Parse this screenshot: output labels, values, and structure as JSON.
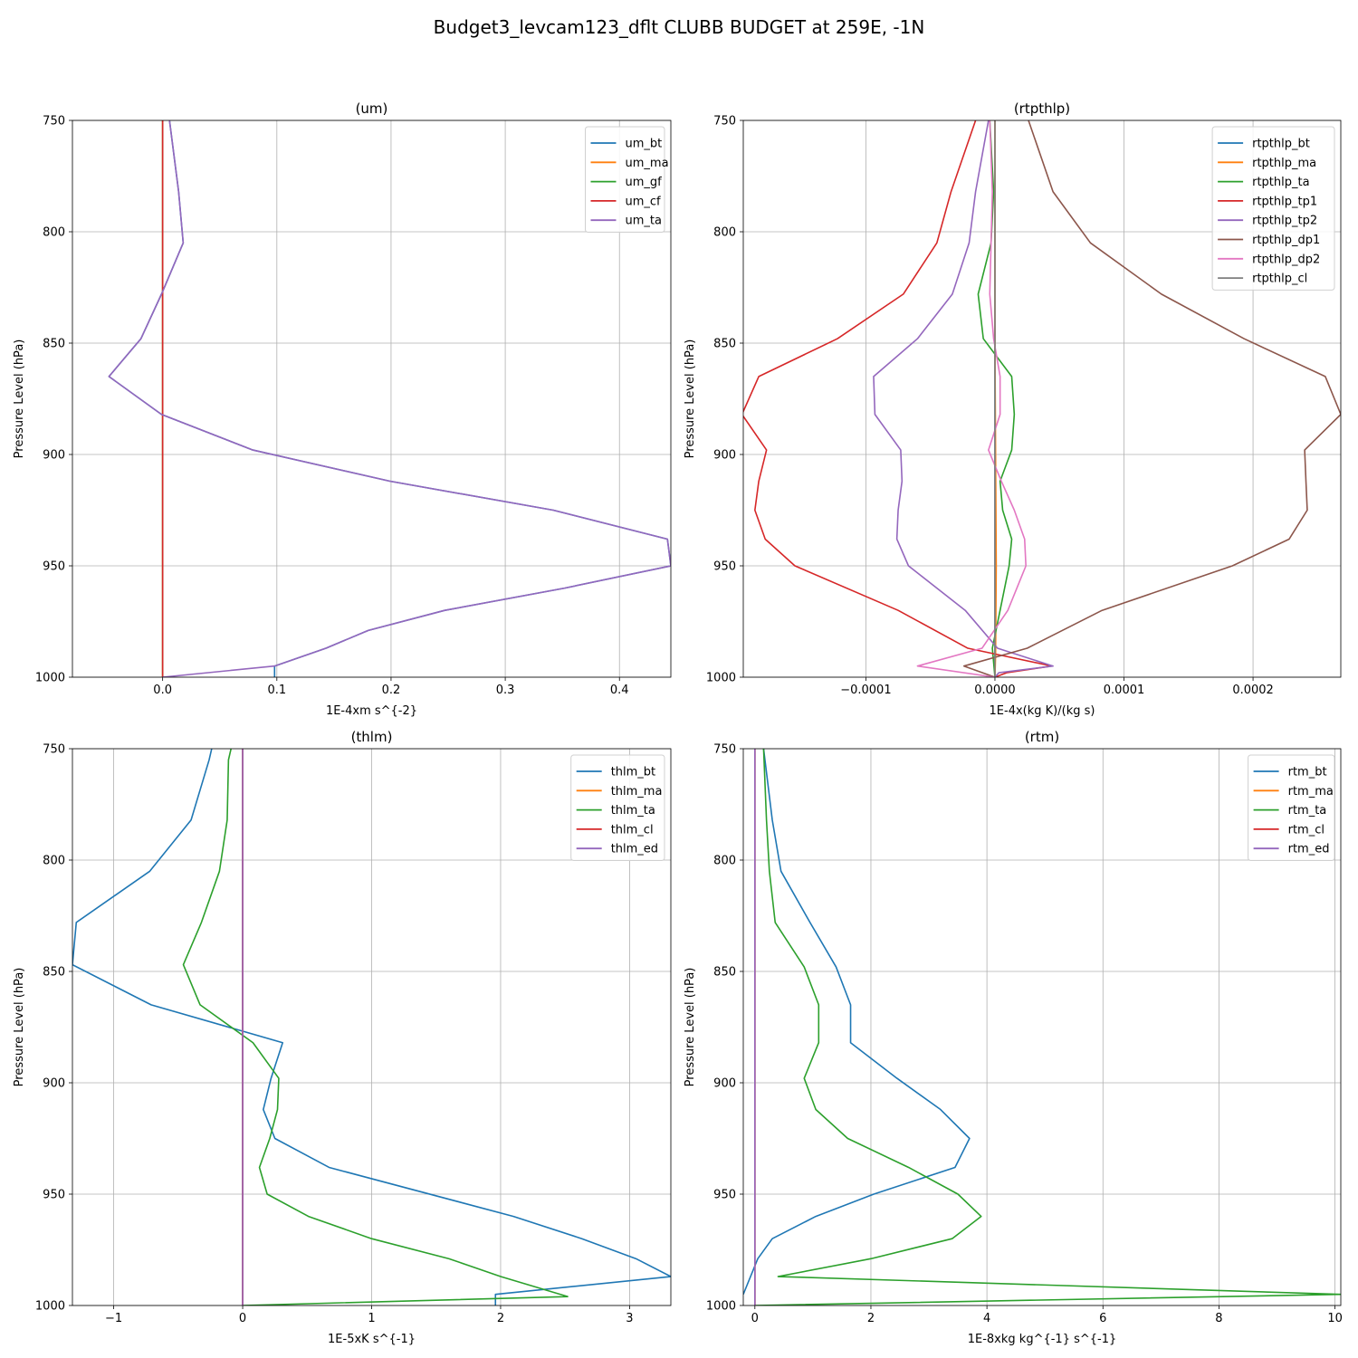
{
  "figure": {
    "title": "Budget3_levcam123_dflt CLUBB BUDGET at 259E, -1N"
  },
  "chart_data": [
    {
      "type": "line",
      "title": "(um)",
      "xlabel": "1E-4xm s^{-2}",
      "ylabel": "Pressure Level (hPa)",
      "xlim": [
        -0.079,
        0.445
      ],
      "ylim": [
        1000,
        750
      ],
      "y_inverted": true,
      "grid": true,
      "legend": "top-right",
      "xticks": [
        0.0,
        0.1,
        0.2,
        0.3,
        0.4
      ],
      "xtick_labels": [
        "0.0",
        "0.1",
        "0.2",
        "0.3",
        "0.4"
      ],
      "yticks": [
        750,
        800,
        850,
        900,
        950,
        1000
      ],
      "ytick_labels": [
        "750",
        "800",
        "850",
        "900",
        "950",
        "1000"
      ],
      "series": [
        {
          "name": "um_bt",
          "color": "#1f77b4",
          "x": [
            0.006,
            0.014,
            0.018,
            -0.001,
            -0.019,
            -0.047,
            -0.001,
            0.079,
            0.199,
            0.342,
            0.442,
            0.445,
            0.352,
            0.247,
            0.18,
            0.143,
            0.098,
            0.098
          ],
          "y": [
            750,
            782,
            805,
            828,
            848,
            865,
            882,
            898,
            912,
            925,
            938,
            950,
            960,
            970,
            979,
            987,
            995,
            1000
          ]
        },
        {
          "name": "um_ma",
          "color": "#ff7f0e",
          "x": [
            0,
            0
          ],
          "y": [
            750,
            1000
          ]
        },
        {
          "name": "um_gf",
          "color": "#2ca02c",
          "x": [
            0,
            0
          ],
          "y": [
            750,
            1000
          ]
        },
        {
          "name": "um_cf",
          "color": "#d62728",
          "x": [
            0,
            0
          ],
          "y": [
            750,
            1000
          ]
        },
        {
          "name": "um_ta",
          "color": "#9467bd",
          "x": [
            0.006,
            0.014,
            0.018,
            -0.001,
            -0.019,
            -0.047,
            -0.001,
            0.079,
            0.199,
            0.342,
            0.442,
            0.445,
            0.352,
            0.247,
            0.18,
            0.143,
            0.098,
            0.0
          ],
          "y": [
            750,
            782,
            805,
            828,
            848,
            865,
            882,
            898,
            912,
            925,
            938,
            950,
            960,
            970,
            979,
            987,
            995,
            1000
          ]
        }
      ]
    },
    {
      "type": "line",
      "title": "(rtpthlp)",
      "xlabel": "1E-4x(kg K)/(kg s)",
      "ylabel": "Pressure Level (hPa)",
      "xlim": [
        -0.000195,
        0.000268
      ],
      "ylim": [
        1000,
        750
      ],
      "y_inverted": true,
      "grid": true,
      "legend": "top-right",
      "xticks": [
        -0.0001,
        0.0,
        0.0001,
        0.0002
      ],
      "xtick_labels": [
        "−0.0001",
        "0.0000",
        "0.0001",
        "0.0002"
      ],
      "yticks": [
        750,
        800,
        850,
        900,
        950,
        1000
      ],
      "ytick_labels": [
        "750",
        "800",
        "850",
        "900",
        "950",
        "1000"
      ],
      "series": [
        {
          "name": "rtpthlp_bt",
          "color": "#1f77b4",
          "x": [
            0,
            0
          ],
          "y": [
            750,
            1000
          ]
        },
        {
          "name": "rtpthlp_ma",
          "color": "#ff7f0e",
          "x": [
            0.0,
            0.0,
            5e-07,
            1e-06,
            5e-07,
            0.0
          ],
          "y": [
            750,
            850,
            900,
            950,
            990,
            1000
          ]
        },
        {
          "name": "rtpthlp_ta",
          "color": "#2ca02c",
          "x": [
            -4e-06,
            -1e-06,
            -3e-06,
            -1.3e-05,
            -9e-06,
            1.3e-05,
            1.5e-05,
            1.3e-05,
            4e-06,
            6e-06,
            1.3e-05,
            1.1e-05,
            4e-06,
            -2e-06,
            0.0
          ],
          "y": [
            750,
            782,
            805,
            828,
            848,
            865,
            882,
            898,
            912,
            925,
            938,
            950,
            970,
            987,
            1000
          ]
        },
        {
          "name": "rtpthlp_tp1",
          "color": "#d62728",
          "x": [
            -1.5e-05,
            -3.4e-05,
            -4.5e-05,
            -7.1e-05,
            -0.000122,
            -0.000183,
            -0.000196,
            -0.000177,
            -0.000183,
            -0.000186,
            -0.000178,
            -0.000155,
            -7.5e-05,
            -2.1e-05,
            4.4e-05,
            9e-06,
            0.0
          ],
          "y": [
            750,
            782,
            805,
            828,
            848,
            865,
            882,
            898,
            912,
            925,
            938,
            950,
            970,
            987,
            995,
            998,
            1000
          ]
        },
        {
          "name": "rtpthlp_tp2",
          "color": "#9467bd",
          "x": [
            -5e-06,
            -1.5e-05,
            -2e-05,
            -3.3e-05,
            -6e-05,
            -9.4e-05,
            -9.3e-05,
            -7.3e-05,
            -7.2e-05,
            -7.5e-05,
            -7.6e-05,
            -6.7e-05,
            -2.3e-05,
            2e-06,
            4.5e-05,
            3e-06,
            0.0
          ],
          "y": [
            750,
            782,
            805,
            828,
            848,
            865,
            882,
            898,
            912,
            925,
            938,
            950,
            970,
            987,
            995,
            998,
            1000
          ]
        },
        {
          "name": "rtpthlp_dp1",
          "color": "#8c564b",
          "x": [
            2.6e-05,
            4.5e-05,
            7.4e-05,
            0.000129,
            0.000193,
            0.000256,
            0.000268,
            0.00024,
            0.000241,
            0.000242,
            0.000228,
            0.000184,
            8.3e-05,
            2.5e-05,
            -2.4e-05,
            0.0
          ],
          "y": [
            750,
            782,
            805,
            828,
            848,
            865,
            882,
            898,
            912,
            925,
            938,
            950,
            970,
            987,
            995,
            1000
          ]
        },
        {
          "name": "rtpthlp_dp2",
          "color": "#e377c2",
          "x": [
            -4e-06,
            -2e-06,
            -3e-06,
            -4e-06,
            -1e-06,
            4e-06,
            4e-06,
            -5e-06,
            5e-06,
            1.5e-05,
            2.3e-05,
            2.4e-05,
            1e-05,
            -1e-05,
            -6e-05,
            0.0
          ],
          "y": [
            750,
            782,
            805,
            828,
            848,
            865,
            882,
            898,
            912,
            925,
            938,
            950,
            970,
            987,
            995,
            1000
          ]
        },
        {
          "name": "rtpthlp_cl",
          "color": "#7f7f7f",
          "x": [
            0,
            0
          ],
          "y": [
            750,
            1000
          ]
        }
      ]
    },
    {
      "type": "line",
      "title": "(thlm)",
      "xlabel": "1E-5xK s^{-1}",
      "ylabel": "Pressure Level (hPa)",
      "xlim": [
        -1.32,
        3.32
      ],
      "ylim": [
        1000,
        750
      ],
      "y_inverted": true,
      "grid": true,
      "legend": "top-right",
      "xticks": [
        -1,
        0,
        1,
        2,
        3
      ],
      "xtick_labels": [
        "−1",
        "0",
        "1",
        "2",
        "3"
      ],
      "yticks": [
        750,
        800,
        850,
        900,
        950,
        1000
      ],
      "ytick_labels": [
        "750",
        "800",
        "850",
        "900",
        "950",
        "1000"
      ],
      "series": [
        {
          "name": "thlm_bt",
          "color": "#1f77b4",
          "x": [
            -0.24,
            -0.26,
            -0.4,
            -0.72,
            -1.29,
            -1.32,
            -0.71,
            0.31,
            0.22,
            0.16,
            0.25,
            0.67,
            2.1,
            2.63,
            3.05,
            3.32,
            1.96,
            1.96
          ],
          "y": [
            750,
            755,
            782,
            805,
            828,
            847,
            865,
            882,
            898,
            912,
            925,
            938,
            960,
            970,
            979,
            987,
            995,
            1000
          ]
        },
        {
          "name": "thlm_ma",
          "color": "#ff7f0e",
          "x": [
            0,
            0
          ],
          "y": [
            750,
            1000
          ]
        },
        {
          "name": "thlm_ta",
          "color": "#2ca02c",
          "x": [
            -0.09,
            -0.11,
            -0.12,
            -0.18,
            -0.32,
            -0.46,
            -0.33,
            0.08,
            0.28,
            0.27,
            0.21,
            0.13,
            0.19,
            0.51,
            1.0,
            1.6,
            2.0,
            2.52,
            0.0
          ],
          "y": [
            750,
            755,
            782,
            805,
            828,
            847,
            865,
            882,
            898,
            912,
            925,
            938,
            950,
            960,
            970,
            979,
            987,
            996,
            1000
          ]
        },
        {
          "name": "thlm_cl",
          "color": "#d62728",
          "x": [
            0,
            0
          ],
          "y": [
            750,
            1000
          ]
        },
        {
          "name": "thlm_ed",
          "color": "#9467bd",
          "x": [
            0,
            0
          ],
          "y": [
            750,
            1000
          ]
        }
      ]
    },
    {
      "type": "line",
      "title": "(rtm)",
      "xlabel": "1E-8xkg kg^{-1} s^{-1}",
      "ylabel": "Pressure Level (hPa)",
      "xlim": [
        -0.2,
        10.1
      ],
      "ylim": [
        1000,
        750
      ],
      "y_inverted": true,
      "grid": true,
      "legend": "top-right",
      "xticks": [
        0,
        2,
        4,
        6,
        8,
        10
      ],
      "xtick_labels": [
        "0",
        "2",
        "4",
        "6",
        "8",
        "10"
      ],
      "yticks": [
        750,
        800,
        850,
        900,
        950,
        1000
      ],
      "ytick_labels": [
        "750",
        "800",
        "850",
        "900",
        "950",
        "1000"
      ],
      "series": [
        {
          "name": "rtm_bt",
          "color": "#1f77b4",
          "x": [
            0.15,
            0.3,
            0.45,
            0.95,
            1.4,
            1.65,
            1.65,
            2.45,
            3.2,
            3.7,
            3.45,
            2.05,
            1.05,
            0.3,
            0.05,
            -0.2
          ],
          "y": [
            750,
            782,
            805,
            828,
            848,
            865,
            882,
            898,
            912,
            925,
            938,
            950,
            960,
            970,
            979,
            995
          ]
        },
        {
          "name": "rtm_ma",
          "color": "#ff7f0e",
          "x": [
            0,
            0
          ],
          "y": [
            750,
            1000
          ]
        },
        {
          "name": "rtm_ta",
          "color": "#2ca02c",
          "x": [
            0.15,
            0.2,
            0.25,
            0.35,
            0.85,
            1.1,
            1.1,
            0.85,
            1.05,
            1.6,
            2.65,
            3.5,
            3.9,
            3.4,
            2.0,
            0.4,
            10.1,
            0.0
          ],
          "y": [
            750,
            782,
            805,
            828,
            848,
            865,
            882,
            898,
            912,
            925,
            938,
            950,
            960,
            970,
            979,
            987,
            995,
            1000
          ]
        },
        {
          "name": "rtm_cl",
          "color": "#d62728",
          "x": [
            0,
            0
          ],
          "y": [
            750,
            1000
          ]
        },
        {
          "name": "rtm_ed",
          "color": "#9467bd",
          "x": [
            0,
            0
          ],
          "y": [
            750,
            1000
          ]
        }
      ]
    }
  ]
}
